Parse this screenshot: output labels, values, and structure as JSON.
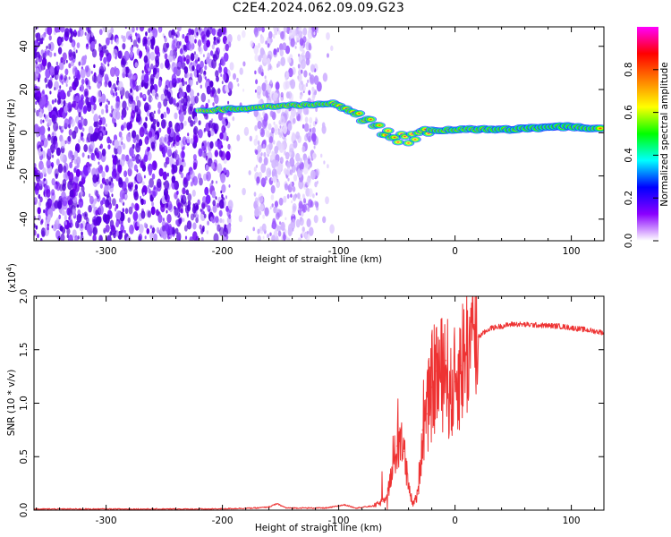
{
  "title": "C2E4.2024.062.09.09.G23",
  "chart_data": [
    {
      "type": "heatmap",
      "xlabel": "Height of straight line (km)",
      "ylabel": "Frequency (Hz)",
      "xlim": [
        -362,
        128
      ],
      "ylim": [
        -50,
        49
      ],
      "xticks": [
        -300,
        -200,
        -100,
        0,
        100
      ],
      "yticks": [
        -40,
        -20,
        0,
        20,
        40
      ],
      "xtick_labels": [
        "-300",
        "-200",
        "-100",
        "0",
        "100"
      ],
      "ytick_labels": [
        "-40",
        "-20",
        "0",
        "20",
        "40"
      ],
      "colorbar": {
        "label": "Normalized spectral amplitude",
        "range": [
          0,
          1
        ],
        "ticks": [
          0.0,
          0.2,
          0.4,
          0.6,
          0.8
        ],
        "tick_labels": [
          "0.0",
          "0.2",
          "0.4",
          "0.6",
          "0.8"
        ],
        "colors": [
          "#ffffff",
          "#8a00ff",
          "#0000ff",
          "#00ffff",
          "#00ff00",
          "#ffff00",
          "#ff8000",
          "#ff0000",
          "#ff00ff"
        ]
      },
      "signal_track": [
        {
          "x": -220,
          "y": 10,
          "amp": 0.15
        },
        {
          "x": -190,
          "y": 11,
          "amp": 0.55
        },
        {
          "x": -150,
          "y": 12.5,
          "amp": 0.35
        },
        {
          "x": -105,
          "y": 13.5,
          "amp": 0.5
        },
        {
          "x": -85,
          "y": 9,
          "amp": 0.45
        },
        {
          "x": -70,
          "y": 4,
          "amp": 0.4
        },
        {
          "x": -55,
          "y": -2,
          "amp": 0.45
        },
        {
          "x": -40,
          "y": -3,
          "amp": 0.4
        },
        {
          "x": -20,
          "y": 1,
          "amp": 0.5
        },
        {
          "x": 0,
          "y": 1.5,
          "amp": 0.6
        },
        {
          "x": 50,
          "y": 1.5,
          "amp": 0.75
        },
        {
          "x": 90,
          "y": 3,
          "amp": 0.85
        },
        {
          "x": 128,
          "y": 1.5,
          "amp": 0.7
        }
      ],
      "noise_region_x": [
        -362,
        -105
      ]
    },
    {
      "type": "line",
      "xlabel": "Height of straight line (km)",
      "ylabel": "SNR (10 * v/v)",
      "y_multiplier_label": "(x10",
      "y_multiplier_exp": "4",
      "y_multiplier_close": ")",
      "xlim": [
        -362,
        128
      ],
      "ylim": [
        0,
        2.0
      ],
      "xticks": [
        -300,
        -200,
        -100,
        0,
        100
      ],
      "yticks": [
        0.0,
        0.5,
        1.0,
        1.5,
        2.0
      ],
      "xtick_labels": [
        "-300",
        "-200",
        "-100",
        "0",
        "100"
      ],
      "ytick_labels": [
        "0.0",
        "0.5",
        "1.0",
        "1.5",
        "2.0"
      ],
      "line_color": "#ee3333",
      "series": [
        {
          "x": [
            -362,
            -300,
            -250,
            -210,
            -170,
            -160,
            -153,
            -145,
            -110,
            -95,
            -85,
            -70,
            -62,
            -56,
            -50,
            -46,
            -44,
            -40,
            -36,
            -32,
            -28,
            -24,
            -20,
            -16,
            -12,
            -8,
            -4,
            0,
            5,
            10,
            20,
            30,
            50,
            70,
            90,
            110,
            128
          ],
          "y": [
            0.01,
            0.01,
            0.01,
            0.01,
            0.02,
            0.03,
            0.06,
            0.02,
            0.02,
            0.05,
            0.02,
            0.04,
            0.08,
            0.25,
            0.6,
            0.72,
            0.55,
            0.2,
            0.05,
            0.15,
            0.75,
            0.9,
            1.15,
            1.3,
            1.25,
            1.4,
            1.05,
            1.2,
            1.35,
            1.5,
            1.62,
            1.7,
            1.74,
            1.73,
            1.72,
            1.69,
            1.66
          ]
        }
      ]
    }
  ]
}
